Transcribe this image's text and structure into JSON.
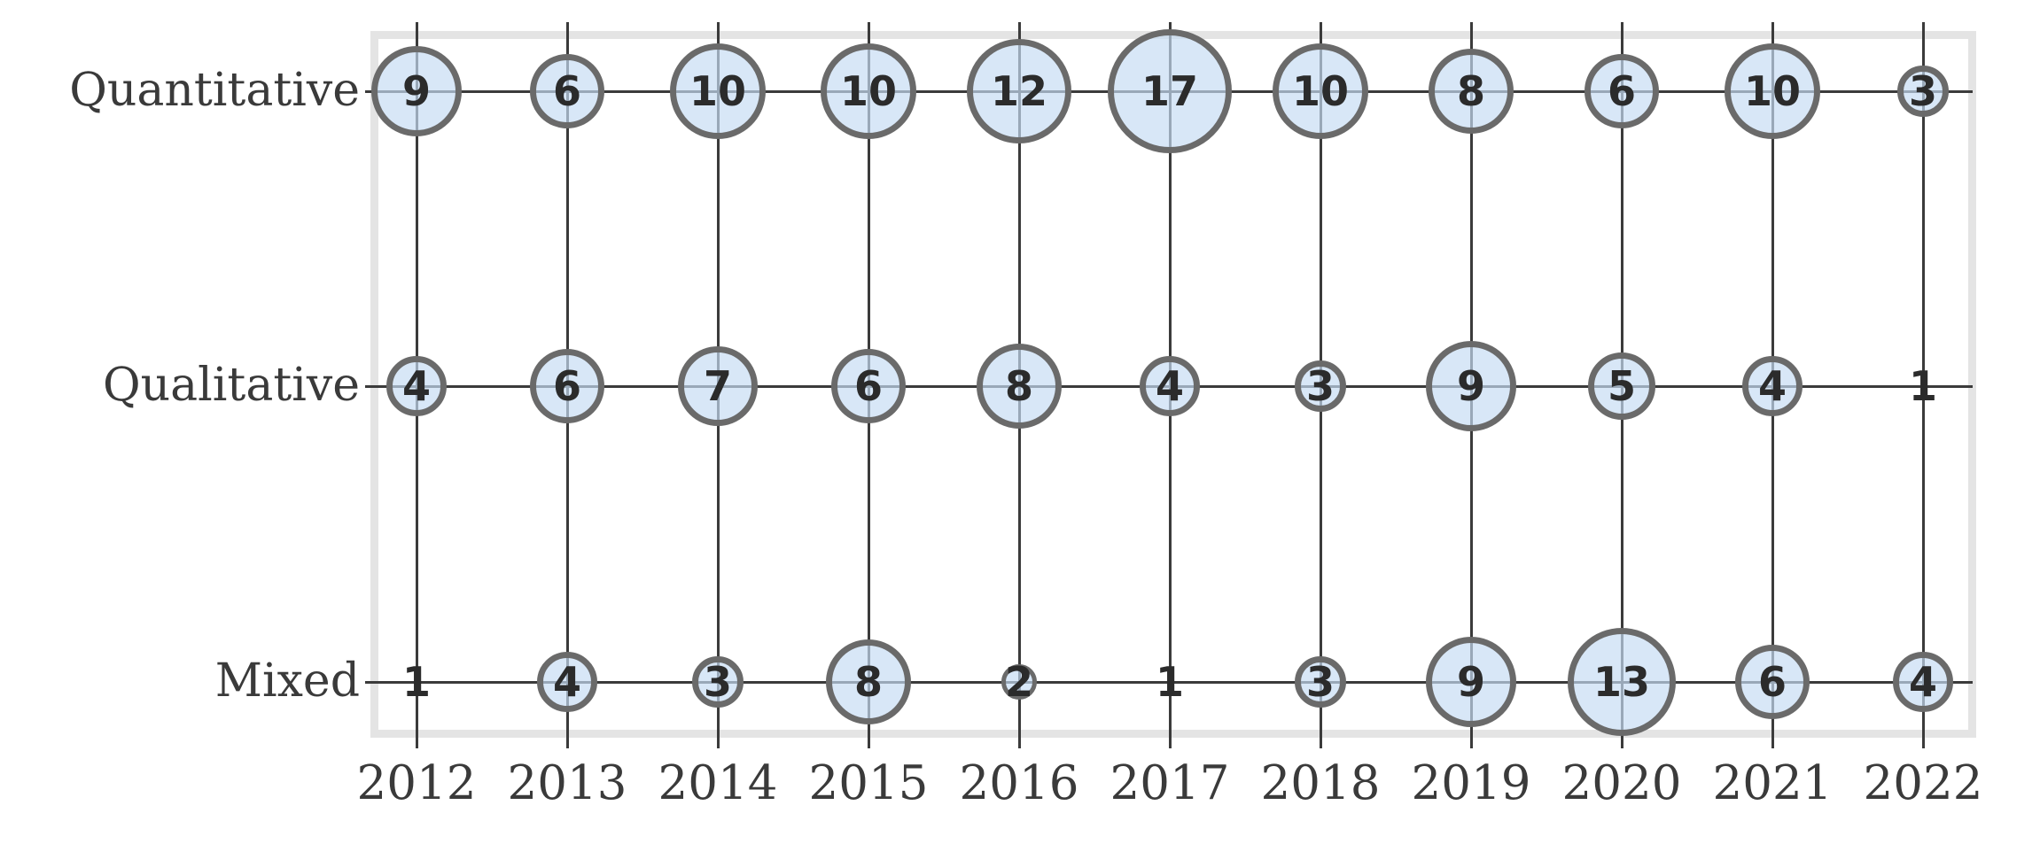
{
  "chart_data": {
    "type": "scatter",
    "subtype": "bubble-matrix",
    "title": "",
    "xlabel": "",
    "ylabel": "",
    "x_categories": [
      "2012",
      "2013",
      "2014",
      "2015",
      "2016",
      "2017",
      "2018",
      "2019",
      "2020",
      "2021",
      "2022"
    ],
    "y_categories": [
      "Quantitative",
      "Qualitative",
      "Mixed"
    ],
    "series": [
      {
        "name": "Quantitative",
        "values": [
          9,
          6,
          10,
          10,
          12,
          17,
          10,
          8,
          6,
          10,
          3
        ]
      },
      {
        "name": "Qualitative",
        "values": [
          4,
          6,
          7,
          6,
          8,
          4,
          3,
          9,
          5,
          4,
          1
        ]
      },
      {
        "name": "Mixed",
        "values": [
          1,
          4,
          3,
          8,
          2,
          1,
          3,
          9,
          13,
          6,
          4
        ]
      }
    ],
    "grid": "on",
    "legend": "none",
    "value_labels": "shown inside bubbles; value 1 rendered as number only without a circle"
  },
  "colors": {
    "background": "#ffffff",
    "bubble_fill": "rgba(197,220,243,0.68)",
    "bubble_stroke": "#6a6a6a",
    "gridline": "#3b3b3b",
    "frame": "#e4e4e4",
    "label_text": "#3a3a3a",
    "number_text": "#2b2b2b"
  }
}
